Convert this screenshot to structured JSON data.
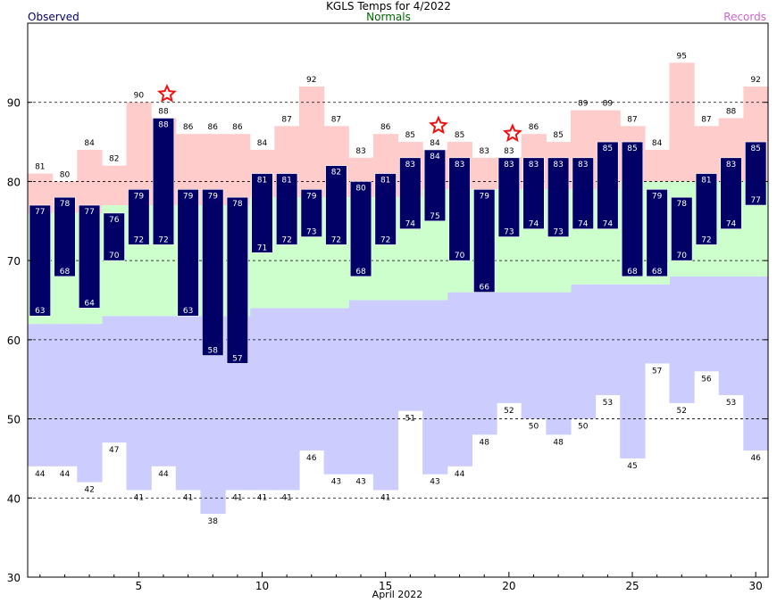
{
  "chart_data": {
    "type": "bar",
    "title": "KGLS Temps for 4/2022",
    "xlabel": "April 2022",
    "ylabel": "",
    "legend": {
      "observed": "Observed",
      "normals": "Normals",
      "records": "Records"
    },
    "ylim": [
      30,
      100
    ],
    "yticks": [
      30,
      40,
      50,
      60,
      70,
      80,
      90
    ],
    "xlim": [
      0.5,
      30.5
    ],
    "xticks": [
      5,
      10,
      15,
      20,
      25,
      30
    ],
    "grid": true,
    "days": [
      1,
      2,
      3,
      4,
      5,
      6,
      7,
      8,
      9,
      10,
      11,
      12,
      13,
      14,
      15,
      16,
      17,
      18,
      19,
      20,
      21,
      22,
      23,
      24,
      25,
      26,
      27,
      28,
      29,
      30
    ],
    "observed_high": [
      77,
      78,
      77,
      76,
      79,
      88,
      79,
      79,
      78,
      81,
      81,
      79,
      82,
      80,
      81,
      83,
      84,
      83,
      79,
      83,
      83,
      83,
      83,
      85,
      85,
      79,
      78,
      81,
      83,
      85
    ],
    "observed_low": [
      63,
      68,
      64,
      70,
      72,
      72,
      63,
      58,
      57,
      71,
      72,
      73,
      72,
      68,
      72,
      74,
      75,
      70,
      66,
      73,
      74,
      73,
      74,
      74,
      68,
      68,
      70,
      72,
      74,
      77
    ],
    "normal_high": [
      76,
      76,
      76,
      77,
      77,
      77,
      77,
      77,
      77,
      78,
      78,
      78,
      78,
      78,
      78,
      78,
      79,
      79,
      79,
      79,
      79,
      79,
      79,
      79,
      80,
      80,
      80,
      80,
      80,
      80
    ],
    "normal_low": [
      62,
      62,
      62,
      63,
      63,
      63,
      63,
      63,
      63,
      64,
      64,
      64,
      64,
      65,
      65,
      65,
      65,
      66,
      66,
      66,
      66,
      66,
      67,
      67,
      67,
      67,
      68,
      68,
      68,
      68
    ],
    "record_high": [
      81,
      80,
      84,
      82,
      90,
      88,
      86,
      86,
      86,
      84,
      87,
      92,
      87,
      83,
      86,
      85,
      84,
      85,
      83,
      83,
      86,
      85,
      89,
      89,
      87,
      84,
      95,
      87,
      88,
      92
    ],
    "record_low": [
      44,
      44,
      42,
      47,
      41,
      44,
      41,
      38,
      41,
      41,
      41,
      46,
      43,
      43,
      41,
      51,
      43,
      44,
      48,
      52,
      50,
      48,
      50,
      53,
      45,
      57,
      52,
      56,
      53,
      46
    ],
    "record_set_days": [
      6,
      17,
      20
    ],
    "colors": {
      "observed": "#000066",
      "normal": "#ccffcc",
      "record_high_band": "#ffcccc",
      "record_low_band": "#ccccff",
      "star": "#ee1111",
      "obs_label": "#000066",
      "norm_label": "#006600",
      "rec_label": "#cc66cc"
    }
  }
}
